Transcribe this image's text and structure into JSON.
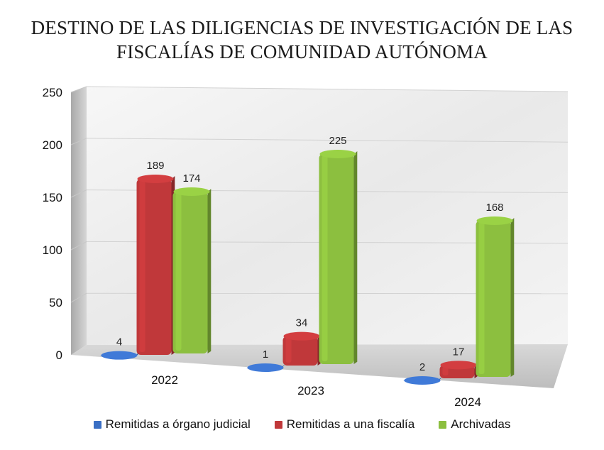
{
  "chart_data": {
    "type": "bar",
    "title": [
      "DESTINO DE LAS DILIGENCIAS DE INVESTIGACIÓN DE LAS",
      "FISCALÍAS DE COMUNIDAD AUTÓNOMA"
    ],
    "categories": [
      "2022",
      "2023",
      "2024"
    ],
    "series": [
      {
        "name": "Remitidas a órgano judicial",
        "values": [
          4,
          1,
          2
        ],
        "color": "#3a6fc4"
      },
      {
        "name": "Remitidas a una fiscalía",
        "values": [
          189,
          34,
          17
        ],
        "color": "#c0383a"
      },
      {
        "name": "Archivadas",
        "values": [
          174,
          225,
          168
        ],
        "color": "#8cbf3f"
      }
    ],
    "yticks": [
      "0",
      "50",
      "100",
      "150",
      "200",
      "250"
    ],
    "ylim": [
      0,
      250
    ],
    "grid": true,
    "legend_position": "bottom",
    "style": "3d-perspective"
  }
}
